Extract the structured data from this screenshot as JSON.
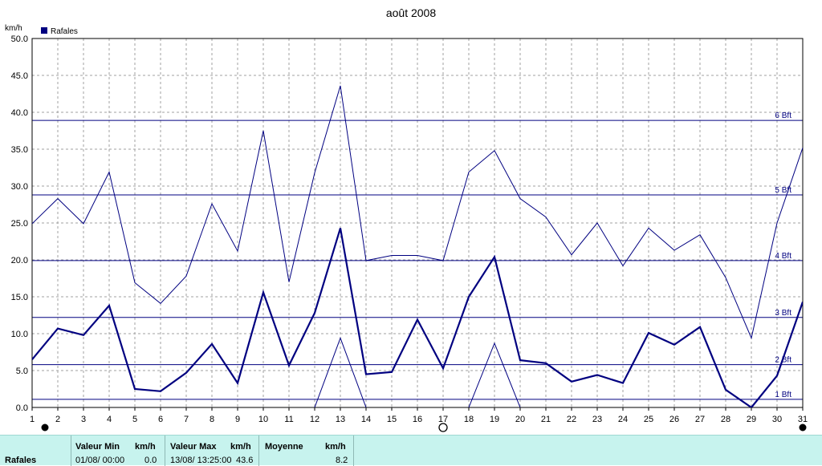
{
  "chart_data": {
    "type": "line",
    "title": "août 2008",
    "ylabel": "km/h",
    "ylim": [
      0,
      50
    ],
    "y_ticks": [
      "0.0",
      "5.0",
      "10.0",
      "15.0",
      "20.0",
      "25.0",
      "30.0",
      "35.0",
      "40.0",
      "45.0",
      "50.0"
    ],
    "x": [
      1,
      2,
      3,
      4,
      5,
      6,
      7,
      8,
      9,
      10,
      11,
      12,
      13,
      14,
      15,
      16,
      17,
      18,
      19,
      20,
      21,
      22,
      23,
      24,
      25,
      26,
      27,
      28,
      29,
      30,
      31
    ],
    "x_ticks": [
      "1",
      "2",
      "3",
      "4",
      "5",
      "6",
      "7",
      "8",
      "9",
      "10",
      "11",
      "12",
      "13",
      "14",
      "15",
      "16",
      "17",
      "18",
      "19",
      "20",
      "21",
      "22",
      "23",
      "24",
      "25",
      "26",
      "27",
      "28",
      "29",
      "30",
      "31"
    ],
    "legend": {
      "label": "Rafales",
      "color": "#000080",
      "placement": "top-left"
    },
    "grid": true,
    "series": [
      {
        "name": "Rafales",
        "values": [
          6.5,
          10.7,
          9.8,
          13.8,
          2.5,
          2.2,
          4.7,
          8.6,
          3.3,
          15.6,
          5.7,
          12.8,
          24.3,
          4.5,
          4.8,
          11.9,
          5.3,
          15.0,
          20.4,
          6.4,
          6.0,
          3.5,
          4.4,
          3.3,
          10.1,
          8.5,
          10.9,
          2.4,
          0.0,
          4.3,
          14.3
        ],
        "style": "thick"
      },
      {
        "values": [
          24.9,
          28.3,
          24.9,
          31.9,
          16.9,
          14.1,
          17.8,
          27.6,
          21.2,
          37.5,
          17.0,
          31.8,
          43.6,
          19.9,
          20.6,
          20.6,
          19.9,
          31.9,
          34.8,
          28.3,
          25.8,
          20.7,
          25.0,
          19.2,
          24.3,
          21.3,
          23.4,
          17.6,
          9.4,
          25.0,
          35.2
        ],
        "style": "thin-upper"
      },
      {
        "x": [
          11.75,
          12,
          13,
          14
        ],
        "values": [
          -4.0,
          0.0,
          9.4,
          0.0
        ],
        "style": "thin-lower"
      },
      {
        "x": [
          17.7,
          18,
          19,
          20
        ],
        "values": [
          -4.0,
          0.0,
          8.7,
          0.0
        ],
        "style": "thin-lower"
      }
    ],
    "beaufort": [
      {
        "label": "1 Bft",
        "value": 1.1
      },
      {
        "label": "2 Bft",
        "value": 5.8
      },
      {
        "label": "3 Bft",
        "value": 12.2
      },
      {
        "label": "4 Bft",
        "value": 19.9
      },
      {
        "label": "5 Bft",
        "value": 28.8
      },
      {
        "label": "6 Bft",
        "value": 38.9
      }
    ],
    "moon_phases": [
      {
        "day": 1.5,
        "phase": "new"
      },
      {
        "day": 17,
        "phase": "full"
      },
      {
        "day": 31,
        "phase": "new"
      }
    ],
    "colors": {
      "series": "#000080",
      "grid": "#a0a0a0",
      "axis": "#000000"
    }
  },
  "stats": {
    "row_label": "Rafales",
    "min": {
      "header": "Valeur Min",
      "unit": "km/h",
      "date": "01/08/  00:00",
      "value": "0.0"
    },
    "max": {
      "header": "Valeur Max",
      "unit": "km/h",
      "date": "13/08/  13:25:00",
      "value": "43.6"
    },
    "avg": {
      "header": "Moyenne",
      "unit": "km/h",
      "value": "8.2"
    },
    "background": "#c7f3ee"
  }
}
